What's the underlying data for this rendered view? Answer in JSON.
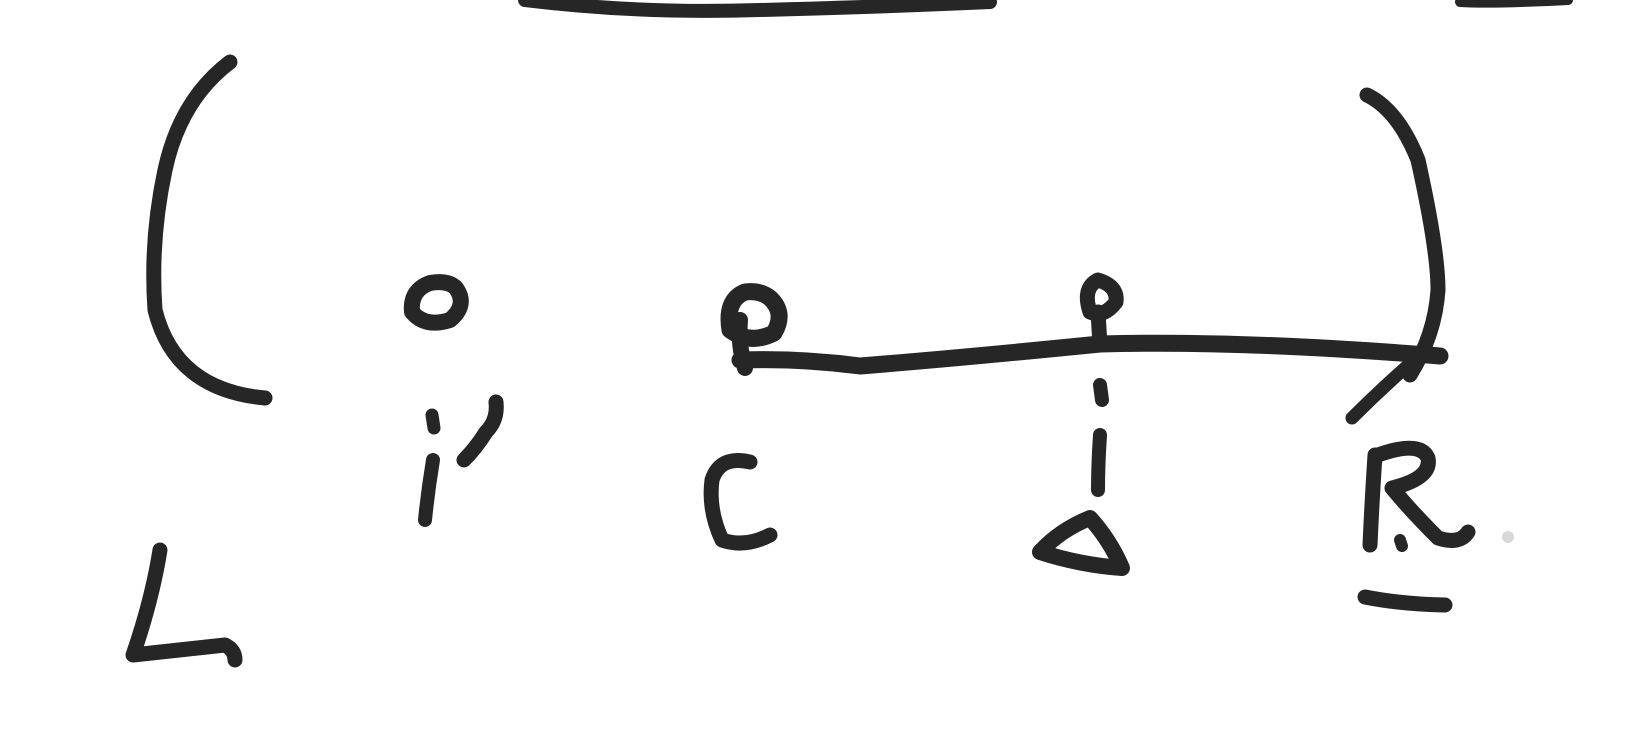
{
  "diagram": {
    "ink_color": "#262626",
    "background": "#ffffff",
    "labels": {
      "left_bracket": "L",
      "i_prime": "i'",
      "center": "c",
      "i": "i",
      "delta": "Δ",
      "right_bracket": "R"
    }
  }
}
